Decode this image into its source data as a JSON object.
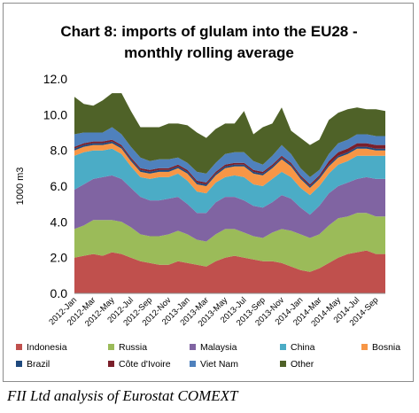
{
  "chart_data": {
    "type": "area",
    "stacked": true,
    "title_lines": [
      "Chart 8: imports of glulam into the EU28 -",
      "monthly rolling average"
    ],
    "ylabel": "1000 m3",
    "xlabel": "",
    "ylim": [
      0,
      12
    ],
    "yticks": [
      "0.0",
      "2.0",
      "4.0",
      "6.0",
      "8.0",
      "10.0",
      "12.0"
    ],
    "x": [
      "2012-Jan",
      "2012-Feb",
      "2012-Mar",
      "2012-Apr",
      "2012-May",
      "2012-Jun",
      "2012-Jul",
      "2012-Aug",
      "2012-Sep",
      "2012-Oct",
      "2012-Nov",
      "2012-Dec",
      "2013-Jan",
      "2013-Feb",
      "2013-Mar",
      "2013-Apr",
      "2013-May",
      "2013-Jun",
      "2013-Jul",
      "2013-Aug",
      "2013-Sep",
      "2013-Oct",
      "2013-Nov",
      "2013-Dec",
      "2014-Jan",
      "2014-Feb",
      "2014-Mar",
      "2014-Apr",
      "2014-May",
      "2014-Jun",
      "2014-Jul",
      "2014-Aug",
      "2014-Sep",
      "2014-Oct"
    ],
    "xtick_labels": [
      "2012-Jan",
      "2012-Mar",
      "2012-May",
      "2012-Jul",
      "2012-Sep",
      "2012-Nov",
      "2013-Jan",
      "2013-Mar",
      "2013-May",
      "2013-Jul",
      "2013-Sep",
      "2013-Nov",
      "2014-Jan",
      "2014-Mar",
      "2014-May",
      "2014-Jul",
      "2014-Sep"
    ],
    "series": [
      {
        "name": "Indonesia",
        "color": "#c0504d",
        "values": [
          2.0,
          2.1,
          2.2,
          2.1,
          2.3,
          2.2,
          2.0,
          1.8,
          1.7,
          1.6,
          1.6,
          1.8,
          1.7,
          1.6,
          1.5,
          1.8,
          2.0,
          2.1,
          2.0,
          1.9,
          1.8,
          1.8,
          1.7,
          1.5,
          1.3,
          1.2,
          1.4,
          1.7,
          2.0,
          2.2,
          2.3,
          2.4,
          2.2,
          2.2
        ]
      },
      {
        "name": "Russia",
        "color": "#9bbb59",
        "values": [
          1.6,
          1.7,
          1.9,
          2.0,
          1.8,
          1.8,
          1.7,
          1.5,
          1.5,
          1.6,
          1.7,
          1.7,
          1.6,
          1.4,
          1.4,
          1.5,
          1.6,
          1.5,
          1.4,
          1.3,
          1.3,
          1.6,
          1.9,
          2.0,
          2.0,
          1.9,
          1.9,
          2.1,
          2.2,
          2.1,
          2.2,
          2.1,
          2.1,
          2.1
        ]
      },
      {
        "name": "Malaysia",
        "color": "#8064a2",
        "values": [
          2.2,
          2.3,
          2.3,
          2.4,
          2.5,
          2.4,
          2.2,
          2.1,
          2.0,
          2.0,
          2.0,
          1.9,
          1.7,
          1.5,
          1.6,
          1.8,
          1.8,
          1.8,
          1.8,
          1.7,
          1.7,
          1.7,
          1.9,
          1.8,
          1.5,
          1.3,
          1.6,
          1.8,
          1.8,
          1.9,
          1.9,
          2.0,
          2.1,
          2.1
        ]
      },
      {
        "name": "China",
        "color": "#4bacc6",
        "values": [
          1.9,
          1.8,
          1.6,
          1.5,
          1.5,
          1.4,
          1.2,
          1.1,
          1.2,
          1.3,
          1.2,
          1.3,
          1.3,
          1.2,
          1.1,
          1.1,
          1.1,
          1.2,
          1.3,
          1.2,
          1.2,
          1.3,
          1.3,
          1.2,
          1.1,
          1.1,
          1.1,
          1.1,
          1.2,
          1.2,
          1.3,
          1.2,
          1.3,
          1.3
        ]
      },
      {
        "name": "Bosnia",
        "color": "#f79646",
        "values": [
          0.3,
          0.3,
          0.3,
          0.3,
          0.3,
          0.3,
          0.3,
          0.3,
          0.3,
          0.3,
          0.3,
          0.3,
          0.4,
          0.4,
          0.4,
          0.4,
          0.5,
          0.5,
          0.6,
          0.6,
          0.6,
          0.6,
          0.7,
          0.6,
          0.5,
          0.4,
          0.4,
          0.4,
          0.4,
          0.4,
          0.4,
          0.4,
          0.3,
          0.3
        ]
      },
      {
        "name": "Brazil",
        "color": "#1f497d",
        "values": [
          0.1,
          0.1,
          0.1,
          0.1,
          0.1,
          0.1,
          0.1,
          0.1,
          0.1,
          0.1,
          0.1,
          0.1,
          0.1,
          0.1,
          0.1,
          0.1,
          0.1,
          0.1,
          0.1,
          0.1,
          0.1,
          0.1,
          0.1,
          0.1,
          0.1,
          0.1,
          0.1,
          0.1,
          0.1,
          0.1,
          0.1,
          0.1,
          0.1,
          0.1
        ]
      },
      {
        "name": "Côte d'Ivoire",
        "color": "#7b1f2a",
        "values": [
          0.1,
          0.1,
          0.1,
          0.1,
          0.1,
          0.1,
          0.1,
          0.1,
          0.1,
          0.1,
          0.1,
          0.1,
          0.1,
          0.1,
          0.1,
          0.1,
          0.1,
          0.1,
          0.1,
          0.1,
          0.1,
          0.1,
          0.1,
          0.1,
          0.1,
          0.1,
          0.1,
          0.2,
          0.2,
          0.2,
          0.2,
          0.2,
          0.2,
          0.2
        ]
      },
      {
        "name": "Viet Nam",
        "color": "#4f81bd",
        "values": [
          0.7,
          0.6,
          0.5,
          0.5,
          0.7,
          0.6,
          0.6,
          0.6,
          0.5,
          0.5,
          0.5,
          0.4,
          0.4,
          0.5,
          0.5,
          0.5,
          0.6,
          0.6,
          0.6,
          0.5,
          0.4,
          0.5,
          0.6,
          0.5,
          0.4,
          0.4,
          0.3,
          0.4,
          0.5,
          0.5,
          0.5,
          0.5,
          0.5,
          0.5
        ]
      },
      {
        "name": "Other",
        "color": "#4f6228",
        "values": [
          2.1,
          1.6,
          1.5,
          1.8,
          1.9,
          2.3,
          2.0,
          1.7,
          1.9,
          1.8,
          2.0,
          1.9,
          2.1,
          2.2,
          2.0,
          1.9,
          1.7,
          1.6,
          2.3,
          1.5,
          2.1,
          1.8,
          2.1,
          1.3,
          1.7,
          1.8,
          1.7,
          1.9,
          1.7,
          1.7,
          1.5,
          1.4,
          1.5,
          1.4
        ]
      }
    ],
    "legend_position": "bottom",
    "grid": false
  },
  "caption": "FII Ltd analysis of Eurostat COMEXT"
}
